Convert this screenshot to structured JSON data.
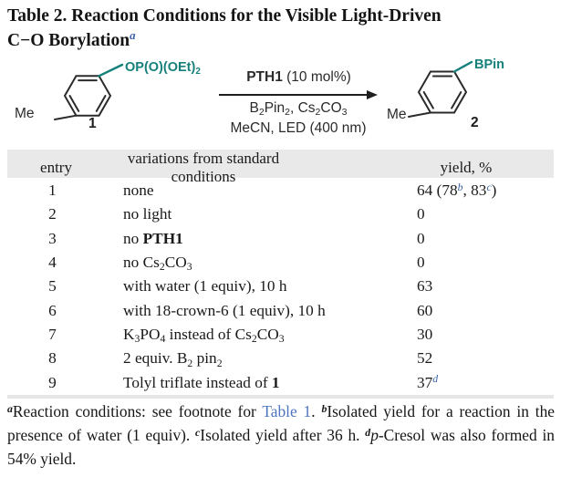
{
  "colors": {
    "teal": "#16807a",
    "blue": "#3b61a9",
    "link": "#4d74bd",
    "ink": "#1a1a1a",
    "scheme_ink": "#2a2a2a",
    "header_bg": "#e9e9e9",
    "rule": "#e6e6e6"
  },
  "title": {
    "segments": [
      {
        "t": "Table 2. Reaction Conditions for the Visible Light-Driven"
      },
      {
        "br": true
      },
      {
        "t": "C−O Borylation"
      },
      {
        "t": "a",
        "s": "supt"
      }
    ]
  },
  "scheme": {
    "reactant": {
      "me_label": "Me",
      "number": "1",
      "group_segments": [
        {
          "t": "OP(O)(OEt)"
        },
        {
          "t": "2",
          "s": "sub"
        }
      ]
    },
    "product": {
      "me_label": "Me",
      "number": "2",
      "group_segments": [
        {
          "t": "BPin"
        }
      ]
    },
    "arrow": {
      "above_segments": [
        {
          "t": "PTH1",
          "s": "b"
        },
        {
          "t": " (10 mol%)"
        }
      ],
      "below1_segments": [
        {
          "t": "B"
        },
        {
          "t": "2",
          "s": "sub"
        },
        {
          "t": "Pin"
        },
        {
          "t": "2",
          "s": "sub"
        },
        {
          "t": ", Cs"
        },
        {
          "t": "2",
          "s": "sub"
        },
        {
          "t": "CO"
        },
        {
          "t": "3",
          "s": "sub"
        }
      ],
      "below2_segments": [
        {
          "t": "MeCN, LED (400 nm)"
        }
      ]
    }
  },
  "table": {
    "header": {
      "entry": "entry",
      "variations": "variations from standard conditions",
      "yield": "yield, %"
    },
    "rows": [
      {
        "entry": "1",
        "variation": [
          {
            "t": "none"
          }
        ],
        "yield": [
          {
            "t": "64 (78"
          },
          {
            "t": "b",
            "s": "supb"
          },
          {
            "t": ", 83"
          },
          {
            "t": "c",
            "s": "supb"
          },
          {
            "t": ")"
          }
        ]
      },
      {
        "entry": "2",
        "variation": [
          {
            "t": "no light"
          }
        ],
        "yield": [
          {
            "t": "0"
          }
        ]
      },
      {
        "entry": "3",
        "variation": [
          {
            "t": "no "
          },
          {
            "t": "PTH1",
            "s": "b"
          }
        ],
        "yield": [
          {
            "t": "0"
          }
        ]
      },
      {
        "entry": "4",
        "variation": [
          {
            "t": "no Cs"
          },
          {
            "t": "2",
            "s": "sub"
          },
          {
            "t": "CO"
          },
          {
            "t": "3",
            "s": "sub"
          }
        ],
        "yield": [
          {
            "t": "0"
          }
        ]
      },
      {
        "entry": "5",
        "variation": [
          {
            "t": "with water (1 equiv), 10 h"
          }
        ],
        "yield": [
          {
            "t": "63"
          }
        ]
      },
      {
        "entry": "6",
        "variation": [
          {
            "t": "with 18-crown-6 (1 equiv), 10 h"
          }
        ],
        "yield": [
          {
            "t": "60"
          }
        ]
      },
      {
        "entry": "7",
        "variation": [
          {
            "t": "K"
          },
          {
            "t": "3",
            "s": "sub"
          },
          {
            "t": "PO"
          },
          {
            "t": "4",
            "s": "sub"
          },
          {
            "t": " instead of Cs"
          },
          {
            "t": "2",
            "s": "sub"
          },
          {
            "t": "CO"
          },
          {
            "t": "3",
            "s": "sub"
          }
        ],
        "yield": [
          {
            "t": "30"
          }
        ]
      },
      {
        "entry": "8",
        "variation": [
          {
            "t": "2 equiv. B"
          },
          {
            "t": "2",
            "s": "sub"
          },
          {
            "t": " pin"
          },
          {
            "t": "2",
            "s": "sub"
          }
        ],
        "yield": [
          {
            "t": "52"
          }
        ]
      },
      {
        "entry": "9",
        "variation": [
          {
            "t": "Tolyl triflate instead of "
          },
          {
            "t": "1",
            "s": "b"
          }
        ],
        "yield": [
          {
            "t": "37"
          },
          {
            "t": "d",
            "s": "supb"
          }
        ]
      }
    ]
  },
  "footnotes": {
    "segments": [
      {
        "t": "a",
        "s": "fnsup"
      },
      {
        "t": "Reaction conditions: see footnote for "
      },
      {
        "t": "Table 1",
        "s": "link",
        "n": "table-1-link",
        "x": "true"
      },
      {
        "t": ". "
      },
      {
        "t": "b",
        "s": "fnsup"
      },
      {
        "t": "Isolated yield for a reaction in the presence of water (1 equiv). "
      },
      {
        "t": "c",
        "s": "fnsup"
      },
      {
        "t": "Isolated yield after 36 h. "
      },
      {
        "t": "d",
        "s": "fnsup"
      },
      {
        "t": "p",
        "s": "i"
      },
      {
        "t": "-Cresol was also formed in 54% yield."
      }
    ]
  }
}
